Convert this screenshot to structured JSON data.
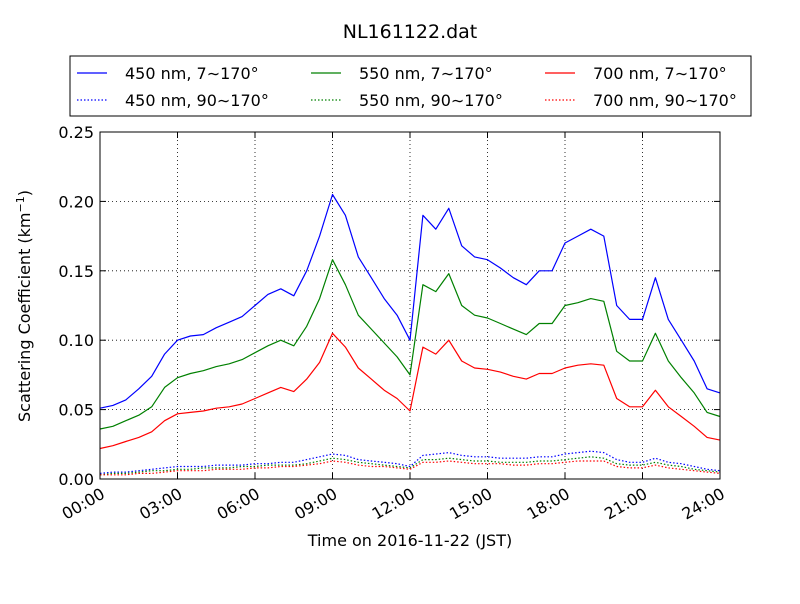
{
  "chart_data": {
    "type": "line",
    "title": "NL161122.dat",
    "xlabel": "Time on 2016-11-22 (JST)",
    "ylabel": "Scattering Coefficient (km",
    "ylabel_sup": "−1",
    "ylabel_close": ")",
    "xlim": [
      0,
      24
    ],
    "ylim": [
      0,
      0.25
    ],
    "x_ticks": [
      0,
      3,
      6,
      9,
      12,
      15,
      18,
      21,
      24
    ],
    "x_tick_labels": [
      "00:00",
      "03:00",
      "06:00",
      "09:00",
      "12:00",
      "15:00",
      "18:00",
      "21:00",
      "24:00"
    ],
    "y_ticks": [
      0,
      0.05,
      0.1,
      0.15,
      0.2,
      0.25
    ],
    "y_tick_labels": [
      "0.00",
      "0.05",
      "0.10",
      "0.15",
      "0.20",
      "0.25"
    ],
    "grid": true,
    "legend_position": "top",
    "x": [
      0,
      0.5,
      1,
      1.5,
      2,
      2.5,
      3,
      3.5,
      4,
      4.5,
      5,
      5.5,
      6,
      6.5,
      7,
      7.5,
      8,
      8.5,
      9,
      9.5,
      10,
      10.5,
      11,
      11.5,
      12,
      12.5,
      13,
      13.5,
      14,
      14.5,
      15,
      15.5,
      16,
      16.5,
      17,
      17.5,
      18,
      18.5,
      19,
      19.5,
      20,
      20.5,
      21,
      21.5,
      22,
      22.5,
      23,
      23.5,
      24
    ],
    "series": [
      {
        "name": "450 nm, 7∼170°",
        "color": "#0000ff",
        "style": "solid",
        "values": [
          0.051,
          0.053,
          0.057,
          0.065,
          0.074,
          0.09,
          0.1,
          0.103,
          0.104,
          0.109,
          0.113,
          0.117,
          0.125,
          0.133,
          0.137,
          0.132,
          0.15,
          0.175,
          0.205,
          0.19,
          0.16,
          0.145,
          0.13,
          0.118,
          0.1,
          0.19,
          0.18,
          0.195,
          0.168,
          0.16,
          0.158,
          0.152,
          0.145,
          0.14,
          0.15,
          0.15,
          0.17,
          0.175,
          0.18,
          0.175,
          0.125,
          0.115,
          0.115,
          0.145,
          0.115,
          0.1,
          0.085,
          0.065,
          0.062
        ]
      },
      {
        "name": "450 nm, 90∼170°",
        "color": "#0000ff",
        "style": "dotted",
        "values": [
          0.004,
          0.005,
          0.005,
          0.006,
          0.007,
          0.008,
          0.009,
          0.009,
          0.009,
          0.01,
          0.01,
          0.01,
          0.011,
          0.011,
          0.012,
          0.012,
          0.014,
          0.016,
          0.018,
          0.017,
          0.014,
          0.013,
          0.012,
          0.011,
          0.009,
          0.017,
          0.018,
          0.019,
          0.017,
          0.016,
          0.016,
          0.015,
          0.015,
          0.015,
          0.016,
          0.016,
          0.018,
          0.019,
          0.02,
          0.019,
          0.014,
          0.012,
          0.012,
          0.015,
          0.012,
          0.011,
          0.009,
          0.007,
          0.006
        ]
      },
      {
        "name": "550 nm, 7∼170°",
        "color": "#008000",
        "style": "solid",
        "values": [
          0.036,
          0.038,
          0.042,
          0.046,
          0.052,
          0.066,
          0.073,
          0.076,
          0.078,
          0.081,
          0.083,
          0.086,
          0.091,
          0.096,
          0.1,
          0.096,
          0.11,
          0.13,
          0.158,
          0.14,
          0.118,
          0.108,
          0.098,
          0.088,
          0.075,
          0.14,
          0.135,
          0.148,
          0.125,
          0.118,
          0.116,
          0.112,
          0.108,
          0.104,
          0.112,
          0.112,
          0.125,
          0.127,
          0.13,
          0.128,
          0.092,
          0.085,
          0.085,
          0.105,
          0.085,
          0.073,
          0.062,
          0.048,
          0.045
        ]
      },
      {
        "name": "550 nm, 90∼170°",
        "color": "#008000",
        "style": "dotted",
        "values": [
          0.003,
          0.004,
          0.004,
          0.005,
          0.006,
          0.006,
          0.007,
          0.007,
          0.008,
          0.008,
          0.008,
          0.009,
          0.009,
          0.01,
          0.01,
          0.01,
          0.011,
          0.013,
          0.015,
          0.014,
          0.012,
          0.011,
          0.01,
          0.009,
          0.008,
          0.014,
          0.014,
          0.015,
          0.014,
          0.013,
          0.013,
          0.012,
          0.012,
          0.012,
          0.013,
          0.013,
          0.014,
          0.015,
          0.016,
          0.015,
          0.011,
          0.01,
          0.01,
          0.012,
          0.01,
          0.009,
          0.007,
          0.006,
          0.005
        ]
      },
      {
        "name": "700 nm, 7∼170°",
        "color": "#ff0000",
        "style": "solid",
        "values": [
          0.022,
          0.024,
          0.027,
          0.03,
          0.034,
          0.042,
          0.047,
          0.048,
          0.049,
          0.051,
          0.052,
          0.054,
          0.058,
          0.062,
          0.066,
          0.063,
          0.072,
          0.084,
          0.105,
          0.095,
          0.08,
          0.072,
          0.064,
          0.058,
          0.049,
          0.095,
          0.09,
          0.1,
          0.085,
          0.08,
          0.079,
          0.077,
          0.074,
          0.072,
          0.076,
          0.076,
          0.08,
          0.082,
          0.083,
          0.082,
          0.058,
          0.052,
          0.052,
          0.064,
          0.052,
          0.045,
          0.038,
          0.03,
          0.028
        ]
      },
      {
        "name": "700 nm, 90∼170°",
        "color": "#ff0000",
        "style": "dotted",
        "values": [
          0.003,
          0.003,
          0.003,
          0.004,
          0.004,
          0.005,
          0.006,
          0.006,
          0.006,
          0.007,
          0.007,
          0.007,
          0.008,
          0.008,
          0.009,
          0.009,
          0.01,
          0.011,
          0.013,
          0.012,
          0.01,
          0.009,
          0.009,
          0.008,
          0.007,
          0.012,
          0.012,
          0.013,
          0.012,
          0.011,
          0.011,
          0.011,
          0.01,
          0.01,
          0.011,
          0.011,
          0.012,
          0.013,
          0.013,
          0.013,
          0.009,
          0.008,
          0.008,
          0.01,
          0.008,
          0.007,
          0.006,
          0.005,
          0.004
        ]
      }
    ],
    "legend_order": [
      0,
      2,
      4,
      1,
      3,
      5
    ]
  }
}
